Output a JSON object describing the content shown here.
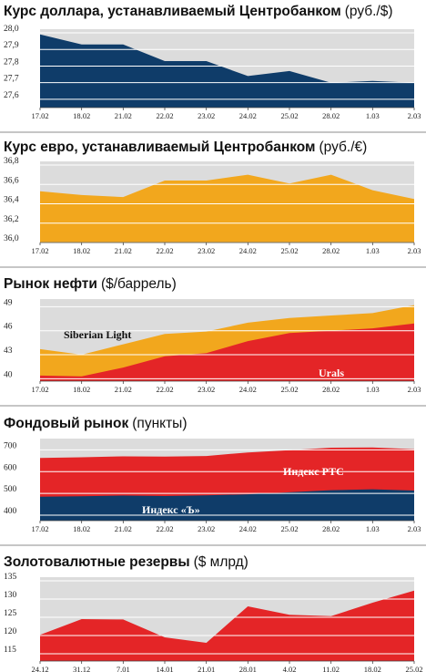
{
  "colors": {
    "panel_bg": "#dcdcdc",
    "dollar": "#0f3c69",
    "euro": "#f2a71d",
    "urals": "#e42527",
    "siberian_light": "#f2a71d",
    "rts": "#e42527",
    "kommersant_index": "#0f3c69",
    "reserves": "#e42527",
    "divider": "#8c8c8c"
  },
  "chart_data": [
    {
      "type": "area",
      "title_bold": "Курс доллара, устанавливаемый Центробанком",
      "title_unit": "(руб./$)",
      "categories": [
        "17.02",
        "18.02",
        "21.02",
        "22.02",
        "23.02",
        "24.02",
        "25.02",
        "28.02",
        "1.03",
        "2.03"
      ],
      "y_ticks": [
        "28,0",
        "27,9",
        "27,8",
        "27,7",
        "27,6"
      ],
      "ylim": [
        27.55,
        28.0
      ],
      "series": [
        {
          "values": [
            27.99,
            27.93,
            27.93,
            27.83,
            27.83,
            27.74,
            27.77,
            27.7,
            27.71,
            27.7
          ]
        }
      ]
    },
    {
      "type": "area",
      "title_bold": "Курс евро, устанавливаемый Центробанком",
      "title_unit": "(руб./€)",
      "categories": [
        "17.02",
        "18.02",
        "21.02",
        "22.02",
        "23.02",
        "24.02",
        "25.02",
        "28.02",
        "1.03",
        "2.03"
      ],
      "y_ticks": [
        "36,8",
        "36,6",
        "36,4",
        "36,2",
        "36,0"
      ],
      "ylim": [
        36.0,
        36.8
      ],
      "series": [
        {
          "values": [
            36.53,
            36.49,
            36.47,
            36.64,
            36.64,
            36.7,
            36.61,
            36.7,
            36.54,
            36.45
          ]
        }
      ]
    },
    {
      "type": "area",
      "title_bold": "Рынок нефти",
      "title_unit": "($/баррель)",
      "categories": [
        "17.02",
        "18.02",
        "21.02",
        "22.02",
        "23.02",
        "24.02",
        "25.02",
        "28.02",
        "1.03",
        "2.03"
      ],
      "y_ticks": [
        "49",
        "46",
        "43",
        "40"
      ],
      "ylim": [
        39.7,
        49.5
      ],
      "series": [
        {
          "name": "Siberian Light",
          "values": [
            43.7,
            43.0,
            44.3,
            45.6,
            45.9,
            47.0,
            47.6,
            47.9,
            48.2,
            49.2
          ]
        },
        {
          "name": "Urals",
          "values": [
            40.4,
            40.3,
            41.4,
            42.8,
            43.2,
            44.7,
            45.7,
            46.0,
            46.3,
            46.9
          ]
        }
      ]
    },
    {
      "type": "area",
      "title_bold": "Фондовый рынок",
      "title_unit": "(пункты)",
      "categories": [
        "17.02",
        "18.02",
        "21.02",
        "22.02",
        "23.02",
        "24.02",
        "25.02",
        "28.02",
        "1.03",
        "2.03"
      ],
      "y_ticks": [
        "700",
        "600",
        "500",
        "400"
      ],
      "ylim": [
        375,
        735
      ],
      "series": [
        {
          "name": "Индекс РТС",
          "values": [
            663,
            666,
            670,
            669,
            672,
            688,
            698,
            710,
            711,
            703
          ]
        },
        {
          "name": "Индекс «Ъ»",
          "values": [
            485,
            487,
            490,
            488,
            491,
            496,
            505,
            515,
            519,
            513
          ]
        }
      ]
    },
    {
      "type": "area",
      "title_bold": "Золотовалютные резервы",
      "title_unit": "($ млрд)",
      "categories": [
        "24.12",
        "31.12",
        "7.01",
        "14.01",
        "21.01",
        "28.01",
        "4.02",
        "11.02",
        "18.02",
        "25.02"
      ],
      "y_ticks": [
        "135",
        "130",
        "125",
        "120",
        "115"
      ],
      "ylim": [
        113,
        135
      ],
      "series": [
        {
          "values": [
            120.2,
            124.5,
            124.4,
            119.5,
            118.0,
            128.0,
            125.7,
            125.3,
            129.0,
            132.3
          ]
        }
      ]
    }
  ]
}
